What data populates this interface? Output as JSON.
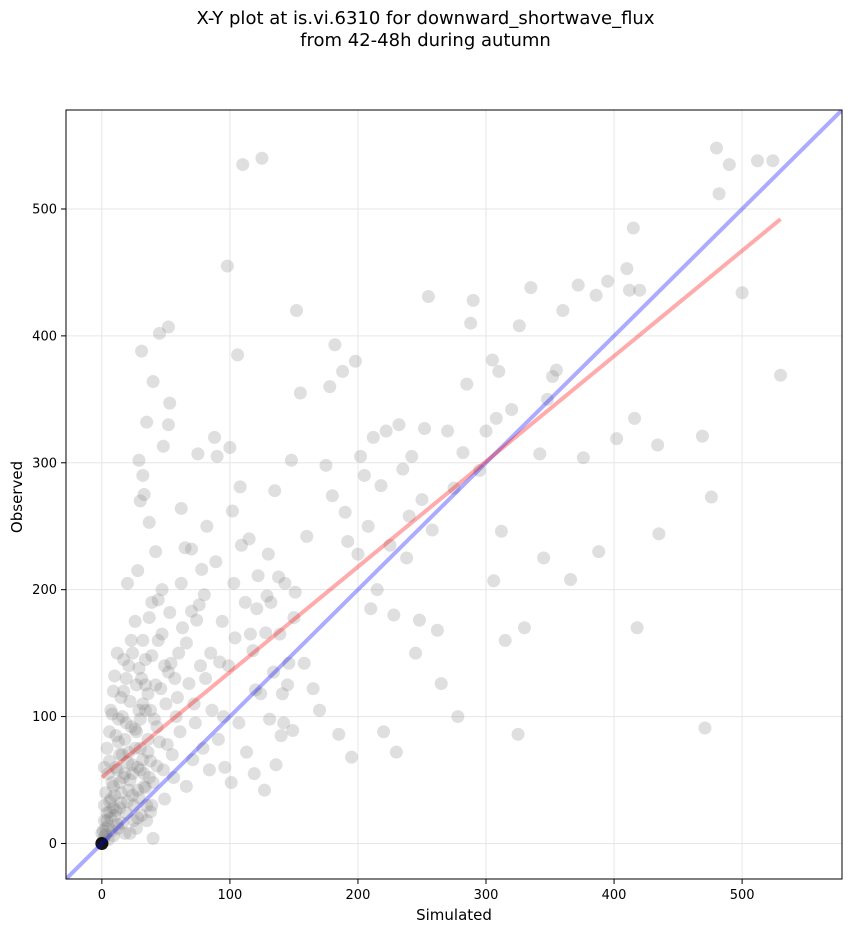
{
  "title_line1": "X-Y plot at is.vi.6310 for downward_shortwave_flux",
  "title_line2": "from 42-48h during autumn",
  "chart_data": {
    "type": "scatter",
    "title": "X-Y plot at is.vi.6310 for downward_shortwave_flux\nfrom 42-48h during autumn",
    "xlabel": "Simulated",
    "ylabel": "Observed",
    "xlim": [
      -28,
      578
    ],
    "ylim": [
      -28,
      578
    ],
    "xticks": [
      0,
      100,
      200,
      300,
      400,
      500
    ],
    "yticks": [
      0,
      100,
      200,
      300,
      400,
      500
    ],
    "grid": true,
    "point_color": "#808080",
    "point_opacity": 0.25,
    "lines": [
      {
        "name": "",
        "color": "#0000ff",
        "opacity": 0.33,
        "x": [
          -28,
          578
        ],
        "y": [
          -28,
          578
        ]
      },
      {
        "name": "",
        "color": "#ff0000",
        "opacity": 0.33,
        "x": [
          0,
          530
        ],
        "y": [
          52,
          492
        ]
      }
    ],
    "points": [
      [
        0,
        0
      ],
      [
        1,
        2
      ],
      [
        2,
        5
      ],
      [
        0,
        8
      ],
      [
        3,
        12
      ],
      [
        5,
        3
      ],
      [
        4,
        18
      ],
      [
        6,
        25
      ],
      [
        2,
        30
      ],
      [
        8,
        10
      ],
      [
        10,
        22
      ],
      [
        7,
        35
      ],
      [
        12,
        15
      ],
      [
        9,
        45
      ],
      [
        14,
        28
      ],
      [
        5,
        55
      ],
      [
        11,
        60
      ],
      [
        15,
        40
      ],
      [
        18,
        8
      ],
      [
        20,
        33
      ],
      [
        16,
        70
      ],
      [
        22,
        50
      ],
      [
        25,
        18
      ],
      [
        13,
        80
      ],
      [
        19,
        95
      ],
      [
        24,
        62
      ],
      [
        28,
        42
      ],
      [
        8,
        102
      ],
      [
        30,
        75
      ],
      [
        17,
        120
      ],
      [
        27,
        88
      ],
      [
        33,
        55
      ],
      [
        35,
        30
      ],
      [
        21,
        140
      ],
      [
        38,
        65
      ],
      [
        12,
        150
      ],
      [
        29,
        105
      ],
      [
        40,
        48
      ],
      [
        23,
        160
      ],
      [
        43,
        92
      ],
      [
        36,
        118
      ],
      [
        31,
        130
      ],
      [
        26,
        175
      ],
      [
        45,
        80
      ],
      [
        48,
        58
      ],
      [
        34,
        145
      ],
      [
        50,
        110
      ],
      [
        39,
        190
      ],
      [
        52,
        135
      ],
      [
        44,
        160
      ],
      [
        55,
        70
      ],
      [
        20,
        205
      ],
      [
        28,
        215
      ],
      [
        47,
        200
      ],
      [
        58,
        100
      ],
      [
        42,
        230
      ],
      [
        60,
        150
      ],
      [
        30,
        270
      ],
      [
        32,
        290
      ],
      [
        45,
        402
      ],
      [
        52,
        407
      ],
      [
        31,
        388
      ],
      [
        40,
        364
      ],
      [
        35,
        332
      ],
      [
        52,
        330
      ],
      [
        53,
        347
      ],
      [
        29,
        302
      ],
      [
        33,
        275
      ],
      [
        48,
        313
      ],
      [
        62,
        264
      ],
      [
        65,
        233
      ],
      [
        37,
        253
      ],
      [
        70,
        183
      ],
      [
        72,
        110
      ],
      [
        75,
        307
      ],
      [
        78,
        216
      ],
      [
        80,
        196
      ],
      [
        85,
        150
      ],
      [
        88,
        320
      ],
      [
        90,
        305
      ],
      [
        92,
        143
      ],
      [
        95,
        100
      ],
      [
        98,
        455
      ],
      [
        100,
        312
      ],
      [
        102,
        262
      ],
      [
        104,
        162
      ],
      [
        106,
        385
      ],
      [
        108,
        281
      ],
      [
        110,
        535
      ],
      [
        112,
        190
      ],
      [
        115,
        240
      ],
      [
        118,
        152
      ],
      [
        120,
        121
      ],
      [
        122,
        211
      ],
      [
        125,
        540
      ],
      [
        128,
        166
      ],
      [
        130,
        228
      ],
      [
        132,
        190
      ],
      [
        135,
        278
      ],
      [
        138,
        210
      ],
      [
        140,
        85
      ],
      [
        142,
        95
      ],
      [
        145,
        125
      ],
      [
        148,
        302
      ],
      [
        150,
        178
      ],
      [
        152,
        420
      ],
      [
        155,
        355
      ],
      [
        158,
        142
      ],
      [
        160,
        242
      ],
      [
        165,
        122
      ],
      [
        170,
        105
      ],
      [
        175,
        298
      ],
      [
        178,
        360
      ],
      [
        180,
        274
      ],
      [
        182,
        393
      ],
      [
        185,
        86
      ],
      [
        188,
        372
      ],
      [
        190,
        261
      ],
      [
        192,
        238
      ],
      [
        195,
        68
      ],
      [
        198,
        380
      ],
      [
        200,
        228
      ],
      [
        202,
        305
      ],
      [
        205,
        290
      ],
      [
        208,
        250
      ],
      [
        210,
        185
      ],
      [
        212,
        320
      ],
      [
        215,
        200
      ],
      [
        218,
        282
      ],
      [
        220,
        88
      ],
      [
        222,
        325
      ],
      [
        225,
        235
      ],
      [
        228,
        180
      ],
      [
        230,
        72
      ],
      [
        232,
        330
      ],
      [
        235,
        295
      ],
      [
        238,
        225
      ],
      [
        240,
        258
      ],
      [
        242,
        305
      ],
      [
        245,
        150
      ],
      [
        248,
        176
      ],
      [
        250,
        271
      ],
      [
        252,
        327
      ],
      [
        255,
        431
      ],
      [
        258,
        247
      ],
      [
        262,
        168
      ],
      [
        265,
        126
      ],
      [
        270,
        325
      ],
      [
        275,
        280
      ],
      [
        278,
        100
      ],
      [
        282,
        308
      ],
      [
        285,
        362
      ],
      [
        288,
        410
      ],
      [
        290,
        428
      ],
      [
        295,
        294
      ],
      [
        300,
        325
      ],
      [
        305,
        381
      ],
      [
        306,
        207
      ],
      [
        308,
        335
      ],
      [
        310,
        372
      ],
      [
        312,
        246
      ],
      [
        315,
        160
      ],
      [
        320,
        342
      ],
      [
        325,
        86
      ],
      [
        326,
        408
      ],
      [
        330,
        170
      ],
      [
        335,
        438
      ],
      [
        342,
        307
      ],
      [
        345,
        225
      ],
      [
        348,
        350
      ],
      [
        352,
        368
      ],
      [
        355,
        373
      ],
      [
        360,
        420
      ],
      [
        366,
        208
      ],
      [
        372,
        440
      ],
      [
        376,
        304
      ],
      [
        386,
        432
      ],
      [
        388,
        230
      ],
      [
        395,
        443
      ],
      [
        402,
        319
      ],
      [
        410,
        453
      ],
      [
        412,
        436
      ],
      [
        415,
        485
      ],
      [
        416,
        335
      ],
      [
        418,
        170
      ],
      [
        420,
        436
      ],
      [
        434,
        314
      ],
      [
        435,
        244
      ],
      [
        469,
        321
      ],
      [
        471,
        91
      ],
      [
        476,
        273
      ],
      [
        480,
        548
      ],
      [
        482,
        512
      ],
      [
        490,
        535
      ],
      [
        500,
        434
      ],
      [
        512,
        538
      ],
      [
        524,
        538
      ],
      [
        530,
        369
      ],
      [
        3,
        40
      ],
      [
        6,
        65
      ],
      [
        9,
        28
      ],
      [
        11,
        85
      ],
      [
        14,
        48
      ],
      [
        16,
        100
      ],
      [
        18,
        55
      ],
      [
        21,
        72
      ],
      [
        24,
        38
      ],
      [
        26,
        90
      ],
      [
        28,
        20
      ],
      [
        30,
        58
      ],
      [
        32,
        110
      ],
      [
        34,
        44
      ],
      [
        36,
        82
      ],
      [
        38,
        25
      ],
      [
        41,
        98
      ],
      [
        43,
        61
      ],
      [
        46,
        122
      ],
      [
        49,
        35
      ],
      [
        51,
        78
      ],
      [
        54,
        142
      ],
      [
        56,
        52
      ],
      [
        59,
        115
      ],
      [
        61,
        88
      ],
      [
        63,
        170
      ],
      [
        66,
        45
      ],
      [
        68,
        126
      ],
      [
        71,
        66
      ],
      [
        73,
        95
      ],
      [
        76,
        188
      ],
      [
        79,
        75
      ],
      [
        81,
        130
      ],
      [
        84,
        58
      ],
      [
        86,
        105
      ],
      [
        89,
        222
      ],
      [
        91,
        82
      ],
      [
        94,
        175
      ],
      [
        96,
        60
      ],
      [
        99,
        140
      ],
      [
        101,
        48
      ],
      [
        103,
        205
      ],
      [
        107,
        95
      ],
      [
        109,
        235
      ],
      [
        113,
        72
      ],
      [
        116,
        165
      ],
      [
        119,
        55
      ],
      [
        121,
        185
      ],
      [
        124,
        118
      ],
      [
        127,
        42
      ],
      [
        129,
        195
      ],
      [
        131,
        98
      ],
      [
        134,
        135
      ],
      [
        136,
        62
      ],
      [
        139,
        165
      ],
      [
        141,
        118
      ],
      [
        143,
        205
      ],
      [
        146,
        142
      ],
      [
        149,
        89
      ],
      [
        151,
        198
      ],
      [
        1,
        10
      ],
      [
        2,
        18
      ],
      [
        3,
        7
      ],
      [
        4,
        24
      ],
      [
        5,
        14
      ],
      [
        6,
        33
      ],
      [
        7,
        20
      ],
      [
        8,
        48
      ],
      [
        9,
        6
      ],
      [
        10,
        38
      ],
      [
        11,
        26
      ],
      [
        12,
        58
      ],
      [
        13,
        12
      ],
      [
        14,
        70
      ],
      [
        15,
        32
      ],
      [
        16,
        16
      ],
      [
        17,
        52
      ],
      [
        18,
        82
      ],
      [
        19,
        24
      ],
      [
        20,
        64
      ],
      [
        21,
        42
      ],
      [
        22,
        8
      ],
      [
        23,
        92
      ],
      [
        24,
        55
      ],
      [
        25,
        30
      ],
      [
        26,
        75
      ],
      [
        27,
        12
      ],
      [
        28,
        60
      ],
      [
        29,
        36
      ],
      [
        30,
        98
      ],
      [
        31,
        22
      ],
      [
        32,
        66
      ],
      [
        33,
        45
      ],
      [
        34,
        125
      ],
      [
        35,
        18
      ],
      [
        36,
        72
      ],
      [
        37,
        52
      ],
      [
        38,
        105
      ],
      [
        39,
        30
      ],
      [
        40,
        4
      ],
      [
        2,
        60
      ],
      [
        4,
        75
      ],
      [
        6,
        88
      ],
      [
        7,
        105
      ],
      [
        9,
        120
      ],
      [
        10,
        132
      ],
      [
        13,
        98
      ],
      [
        15,
        115
      ],
      [
        17,
        145
      ],
      [
        19,
        130
      ],
      [
        22,
        112
      ],
      [
        24,
        150
      ],
      [
        27,
        125
      ],
      [
        29,
        138
      ],
      [
        32,
        160
      ],
      [
        34,
        105
      ],
      [
        37,
        178
      ],
      [
        39,
        148
      ],
      [
        42,
        125
      ],
      [
        44,
        192
      ],
      [
        47,
        165
      ],
      [
        49,
        140
      ],
      [
        53,
        182
      ],
      [
        57,
        130
      ],
      [
        62,
        205
      ],
      [
        66,
        158
      ],
      [
        70,
        232
      ],
      [
        74,
        176
      ],
      [
        77,
        140
      ],
      [
        82,
        250
      ]
    ]
  }
}
